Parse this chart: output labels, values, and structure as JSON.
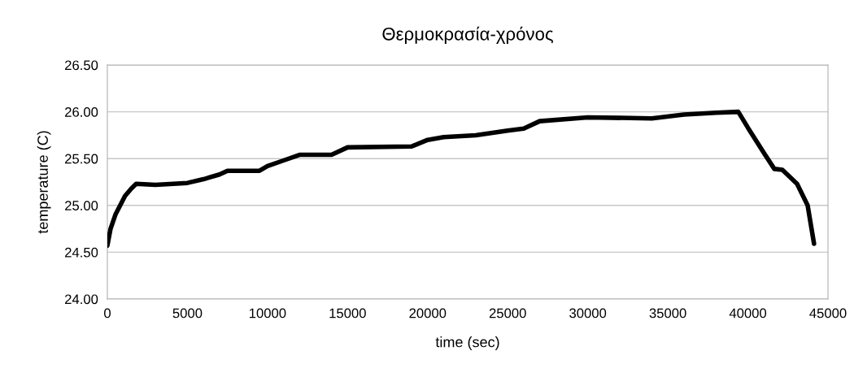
{
  "chart_data": {
    "type": "line",
    "title": "Θερμοκρασία-χρόνος",
    "xlabel": "time (sec)",
    "ylabel": "temperature (C)",
    "xlim": [
      0,
      45000
    ],
    "xticks": [
      0,
      5000,
      10000,
      15000,
      20000,
      25000,
      30000,
      35000,
      40000,
      45000
    ],
    "ylim": [
      24.0,
      26.5
    ],
    "yticks": [
      {
        "value": 24.0,
        "label": "24.00"
      },
      {
        "value": 24.5,
        "label": "24.50"
      },
      {
        "value": 25.0,
        "label": "25.00"
      },
      {
        "value": 25.5,
        "label": "25.50"
      },
      {
        "value": 26.0,
        "label": "26.00"
      },
      {
        "value": 26.5,
        "label": "26.50"
      }
    ],
    "grid": "y",
    "marker": "none",
    "line_style": "solid",
    "series": [
      {
        "color": "#000000",
        "x": [
          0,
          200,
          500,
          800,
          1100,
          1500,
          1800,
          3000,
          5000,
          6000,
          7000,
          7500,
          9500,
          10000,
          11000,
          12000,
          14000,
          15000,
          19000,
          20000,
          21000,
          23000,
          25000,
          26000,
          27000,
          30000,
          34000,
          36000,
          38000,
          39400,
          40000,
          41040,
          41650,
          42150,
          43070,
          43730,
          44130
        ],
        "values": [
          24.57,
          24.75,
          24.9,
          25.0,
          25.1,
          25.18,
          25.23,
          25.22,
          25.24,
          25.28,
          25.33,
          25.37,
          25.37,
          25.42,
          25.48,
          25.54,
          25.54,
          25.62,
          25.63,
          25.7,
          25.73,
          25.75,
          25.8,
          25.82,
          25.9,
          25.94,
          25.93,
          25.97,
          25.99,
          26.0,
          25.83,
          25.55,
          25.39,
          25.38,
          25.23,
          25.0,
          24.59
        ]
      }
    ]
  }
}
